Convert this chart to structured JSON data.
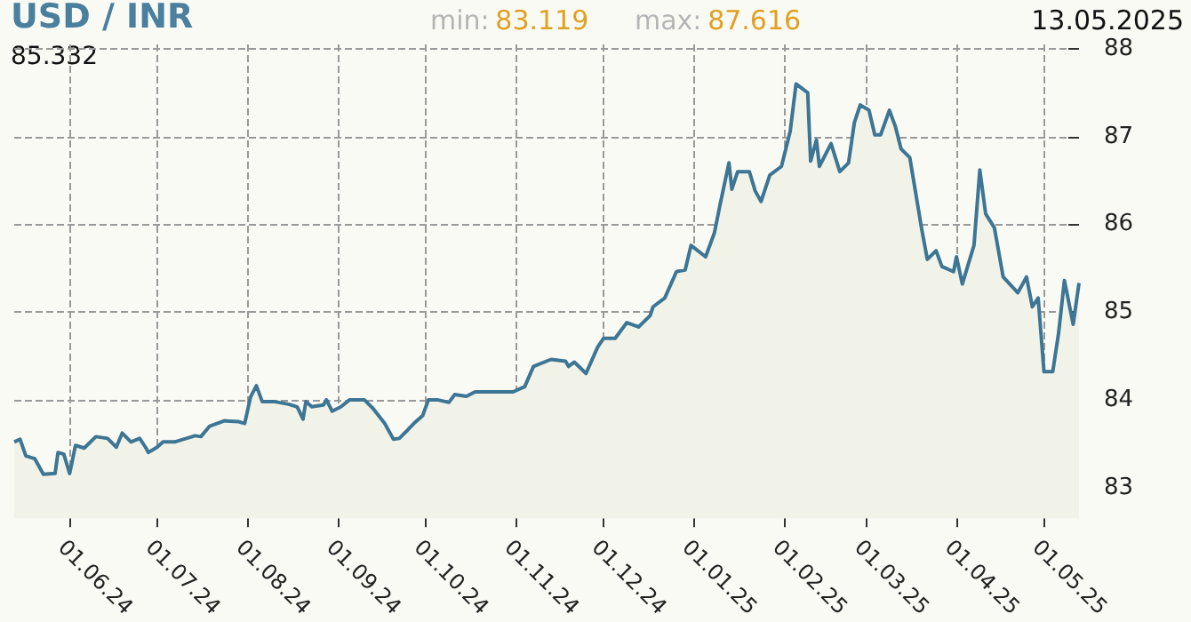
{
  "chart_data": {
    "type": "area",
    "title": "USD / INR",
    "annotations": [
      "min: 83.119",
      "max: 87.616",
      "13.05.2025",
      "85.332"
    ],
    "x": [
      "2024-05-13",
      "2024-05-15",
      "2024-05-17",
      "2024-05-20",
      "2024-05-23",
      "2024-05-27",
      "2024-05-28",
      "2024-05-30",
      "2024-06-01",
      "2024-06-03",
      "2024-06-05",
      "2024-06-06",
      "2024-06-10",
      "2024-06-14",
      "2024-06-17",
      "2024-06-19",
      "2024-06-22",
      "2024-06-25",
      "2024-06-27",
      "2024-06-28",
      "2024-07-01",
      "2024-07-03",
      "2024-07-07",
      "2024-07-11",
      "2024-07-14",
      "2024-07-16",
      "2024-07-19",
      "2024-07-24",
      "2024-07-29",
      "2024-07-31",
      "2024-08-02",
      "2024-08-04",
      "2024-08-06",
      "2024-08-10",
      "2024-08-15",
      "2024-08-18",
      "2024-08-20",
      "2024-08-21",
      "2024-08-23",
      "2024-08-27",
      "2024-08-28",
      "2024-08-30",
      "2024-09-02",
      "2024-09-05",
      "2024-09-10",
      "2024-09-13",
      "2024-09-17",
      "2024-09-20",
      "2024-09-22",
      "2024-09-25",
      "2024-09-27",
      "2024-09-30",
      "2024-10-02",
      "2024-10-05",
      "2024-10-09",
      "2024-10-11",
      "2024-10-15",
      "2024-10-18",
      "2024-10-26",
      "2024-10-31",
      "2024-11-04",
      "2024-11-07",
      "2024-11-13",
      "2024-11-18",
      "2024-11-19",
      "2024-11-21",
      "2024-11-25",
      "2024-11-29",
      "2024-12-01",
      "2024-12-05",
      "2024-12-09",
      "2024-12-13",
      "2024-12-17",
      "2024-12-18",
      "2024-12-22",
      "2024-12-26",
      "2024-12-29",
      "2024-12-31",
      "2025-01-05",
      "2025-01-08",
      "2025-01-10",
      "2025-01-13",
      "2025-01-14",
      "2025-01-16",
      "2025-01-20",
      "2025-01-22",
      "2025-01-24",
      "2025-01-27",
      "2025-01-31",
      "2025-02-03",
      "2025-02-05",
      "2025-02-09",
      "2025-02-10",
      "2025-02-12",
      "2025-02-13",
      "2025-02-17",
      "2025-02-20",
      "2025-02-23",
      "2025-02-25",
      "2025-02-27",
      "2025-03-02",
      "2025-03-04",
      "2025-03-06",
      "2025-03-09",
      "2025-03-11",
      "2025-03-13",
      "2025-03-16",
      "2025-03-18",
      "2025-03-20",
      "2025-03-22",
      "2025-03-25",
      "2025-03-27",
      "2025-03-31",
      "2025-04-01",
      "2025-04-03",
      "2025-04-07",
      "2025-04-09",
      "2025-04-11",
      "2025-04-14",
      "2025-04-17",
      "2025-04-22",
      "2025-04-25",
      "2025-04-27",
      "2025-04-29",
      "2025-05-01",
      "2025-05-04",
      "2025-05-06",
      "2025-05-08",
      "2025-05-11",
      "2025-05-13"
    ],
    "series": [
      {
        "color": "#3d7694",
        "values": [
          83.52,
          83.55,
          83.36,
          83.33,
          83.15,
          83.16,
          83.4,
          83.38,
          83.16,
          83.48,
          83.46,
          83.45,
          83.58,
          83.56,
          83.46,
          83.62,
          83.52,
          83.56,
          83.46,
          83.4,
          83.46,
          83.52,
          83.52,
          83.56,
          83.59,
          83.58,
          83.7,
          83.76,
          83.75,
          83.73,
          84.03,
          84.16,
          83.98,
          83.98,
          83.95,
          83.92,
          83.78,
          83.98,
          83.92,
          83.94,
          84.0,
          83.87,
          83.92,
          84.0,
          84.0,
          83.9,
          83.73,
          83.55,
          83.56,
          83.66,
          83.73,
          83.82,
          84.0,
          84.0,
          83.97,
          84.06,
          84.04,
          84.09,
          84.09,
          84.09,
          84.15,
          84.38,
          84.46,
          84.44,
          84.38,
          84.43,
          84.3,
          84.6,
          84.7,
          84.7,
          84.88,
          84.83,
          84.96,
          85.06,
          85.16,
          85.46,
          85.48,
          85.76,
          85.63,
          85.9,
          86.23,
          86.7,
          86.4,
          86.6,
          86.6,
          86.38,
          86.26,
          86.56,
          86.66,
          87.06,
          87.6,
          87.5,
          86.72,
          86.96,
          86.66,
          86.92,
          86.6,
          86.7,
          87.16,
          87.36,
          87.3,
          87.02,
          87.02,
          87.3,
          87.12,
          86.86,
          86.76,
          86.36,
          85.96,
          85.6,
          85.7,
          85.52,
          85.46,
          85.63,
          85.32,
          85.76,
          86.62,
          86.12,
          85.96,
          85.4,
          85.22,
          85.4,
          85.06,
          85.16,
          84.32,
          84.32,
          84.76,
          85.36,
          84.86,
          85.33
        ]
      }
    ],
    "xlim": [
      "2024-05-13",
      "2025-05-13"
    ],
    "xticks": [
      {
        "value": "2024-06-01",
        "label": "01.06.24"
      },
      {
        "value": "2024-07-01",
        "label": "01.07.24"
      },
      {
        "value": "2024-08-01",
        "label": "01.08.24"
      },
      {
        "value": "2024-09-01",
        "label": "01.09.24"
      },
      {
        "value": "2024-10-01",
        "label": "01.10.24"
      },
      {
        "value": "2024-11-01",
        "label": "01.11.24"
      },
      {
        "value": "2024-12-01",
        "label": "01.12.24"
      },
      {
        "value": "2025-01-01",
        "label": "01.01.25"
      },
      {
        "value": "2025-02-01",
        "label": "01.02.25"
      },
      {
        "value": "2025-03-01",
        "label": "01.03.25"
      },
      {
        "value": "2025-04-01",
        "label": "01.04.25"
      },
      {
        "value": "2025-05-01",
        "label": "01.05.25"
      }
    ],
    "ylim": [
      82.65,
      88.05
    ],
    "yticks": [
      83,
      84,
      85,
      86,
      87,
      88
    ],
    "grid": true,
    "marker": "none",
    "line_style": "solid"
  }
}
